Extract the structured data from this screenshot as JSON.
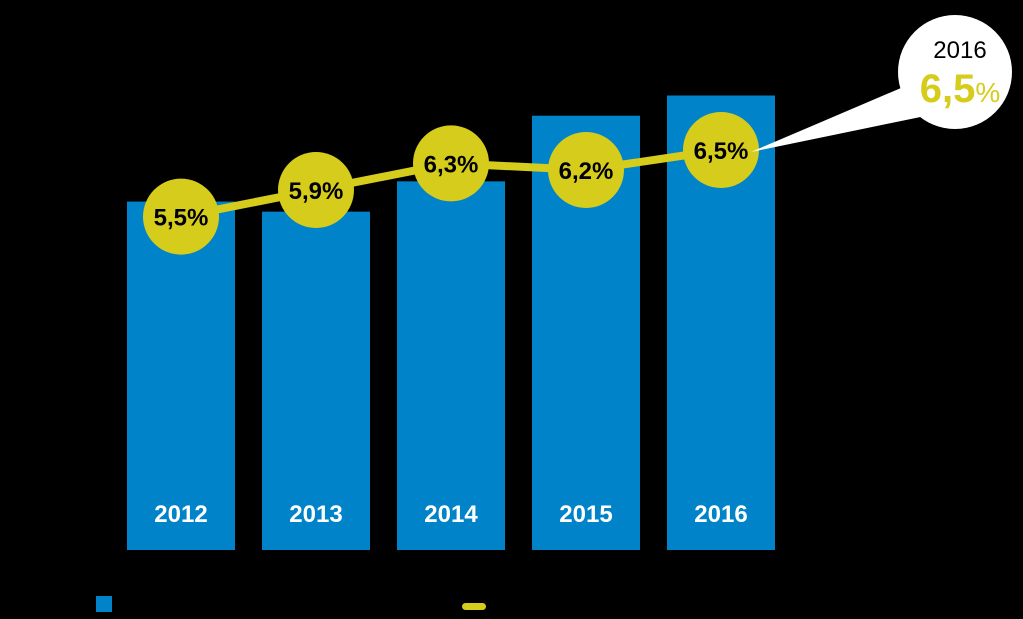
{
  "chart_data": {
    "type": "bar",
    "categories": [
      "2012",
      "2013",
      "2014",
      "2015",
      "2016"
    ],
    "bar_series": {
      "values": [
        69,
        67,
        73,
        86,
        90
      ]
    },
    "line_series": {
      "values": [
        5.5,
        5.9,
        6.3,
        6.2,
        6.5
      ],
      "labels": [
        "5,5%",
        "5,9%",
        "6,3%",
        "6,2%",
        "6,5%"
      ]
    },
    "bar_ylim": [
      0,
      100
    ],
    "line_ylim": [
      0,
      9
    ],
    "grid": false,
    "callout": {
      "year": "2016",
      "value": "6,5",
      "unit": "%"
    },
    "legend": {
      "placement": "bottom-left",
      "items": [
        {
          "marker": "square",
          "color": "#0083c8"
        },
        {
          "marker": "line",
          "color": "#d6cc1b"
        }
      ]
    },
    "colors": {
      "bar": "#0083c8",
      "line": "#d6cc1b",
      "background": "#000000",
      "callout_bg": "#ffffff"
    }
  }
}
